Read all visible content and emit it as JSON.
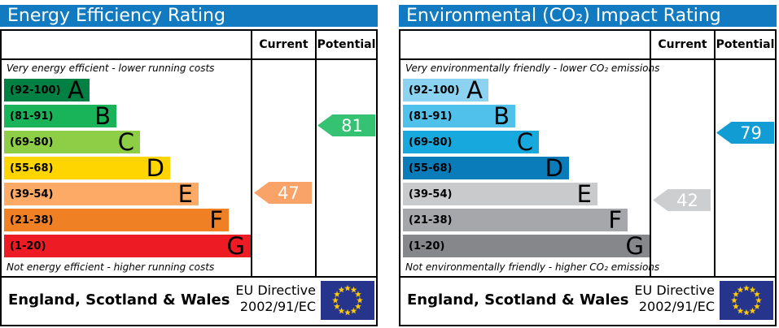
{
  "panels": [
    {
      "id": "energy-efficiency",
      "title": "Energy Efficiency Rating",
      "header_color": "#117ac1",
      "columns": {
        "current": "Current",
        "potential": "Potential"
      },
      "top_note": "Very energy efficient - lower running costs",
      "bottom_note": "Not energy efficient - higher running costs",
      "bands": [
        {
          "letter": "A",
          "range": "(92-100)",
          "min": 92,
          "max": 100,
          "color": "#008042",
          "width_pct": 34.7
        },
        {
          "letter": "B",
          "range": "(81-91)",
          "min": 81,
          "max": 91,
          "color": "#19b459",
          "width_pct": 45.5
        },
        {
          "letter": "C",
          "range": "(69-80)",
          "min": 69,
          "max": 80,
          "color": "#8dce46",
          "width_pct": 55.0
        },
        {
          "letter": "D",
          "range": "(55-68)",
          "min": 55,
          "max": 68,
          "color": "#ffd500",
          "width_pct": 67.3
        },
        {
          "letter": "E",
          "range": "(39-54)",
          "min": 39,
          "max": 54,
          "color": "#fcaa65",
          "width_pct": 78.9
        },
        {
          "letter": "F",
          "range": "(21-38)",
          "min": 21,
          "max": 38,
          "color": "#ef8023",
          "width_pct": 91.0
        },
        {
          "letter": "G",
          "range": "(1-20)",
          "min": 1,
          "max": 20,
          "color": "#ed1c24",
          "width_pct": 100
        }
      ],
      "current": {
        "value": 47,
        "color": "#f9a368"
      },
      "potential": {
        "value": 81,
        "color": "#35c273"
      },
      "footer": {
        "region": "England, Scotland & Wales",
        "directive_line1": "EU Directive",
        "directive_line2": "2002/91/EC"
      }
    },
    {
      "id": "co2-impact",
      "title": "Environmental (CO₂) Impact Rating",
      "header_color": "#117ac1",
      "columns": {
        "current": "Current",
        "potential": "Potential"
      },
      "top_note": "Very environmentally friendly - lower CO₂ emissions",
      "bottom_note": "Not environmentally friendly - higher CO₂ emissions",
      "bands": [
        {
          "letter": "A",
          "range": "(92-100)",
          "min": 92,
          "max": 100,
          "color": "#8bd3f1",
          "width_pct": 34.7
        },
        {
          "letter": "B",
          "range": "(81-91)",
          "min": 81,
          "max": 91,
          "color": "#50c1ea",
          "width_pct": 45.5
        },
        {
          "letter": "C",
          "range": "(69-80)",
          "min": 69,
          "max": 80,
          "color": "#17a8de",
          "width_pct": 55.0
        },
        {
          "letter": "D",
          "range": "(55-68)",
          "min": 55,
          "max": 68,
          "color": "#0b7cba",
          "width_pct": 67.3
        },
        {
          "letter": "E",
          "range": "(39-54)",
          "min": 39,
          "max": 54,
          "color": "#c9cacc",
          "width_pct": 78.9
        },
        {
          "letter": "F",
          "range": "(21-38)",
          "min": 21,
          "max": 38,
          "color": "#a5a7aa",
          "width_pct": 91.0
        },
        {
          "letter": "G",
          "range": "(1-20)",
          "min": 1,
          "max": 20,
          "color": "#85878a",
          "width_pct": 100
        }
      ],
      "current": {
        "value": 42,
        "color": "#cdced0"
      },
      "potential": {
        "value": 79,
        "color": "#119cd4"
      },
      "footer": {
        "region": "England, Scotland & Wales",
        "directive_line1": "EU Directive",
        "directive_line2": "2002/91/EC"
      }
    }
  ],
  "eu_flag": {
    "background": "#27348b",
    "star_color": "#ffcc00"
  },
  "chart_data": [
    {
      "type": "bar",
      "title": "Energy Efficiency Rating",
      "categories": [
        "A (92-100)",
        "B (81-91)",
        "C (69-80)",
        "D (55-68)",
        "E (39-54)",
        "F (21-38)",
        "G (1-20)"
      ],
      "series": [
        {
          "name": "Current",
          "values": [
            47
          ],
          "band": "E"
        },
        {
          "name": "Potential",
          "values": [
            81
          ],
          "band": "B"
        }
      ],
      "xlabel": "",
      "ylabel": "",
      "ylim": [
        1,
        100
      ],
      "annotations": [
        "Very energy efficient - lower running costs",
        "Not energy efficient - higher running costs",
        "England, Scotland & Wales",
        "EU Directive 2002/91/EC"
      ]
    },
    {
      "type": "bar",
      "title": "Environmental (CO₂) Impact Rating",
      "categories": [
        "A (92-100)",
        "B (81-91)",
        "C (69-80)",
        "D (55-68)",
        "E (39-54)",
        "F (21-38)",
        "G (1-20)"
      ],
      "series": [
        {
          "name": "Current",
          "values": [
            42
          ],
          "band": "E"
        },
        {
          "name": "Potential",
          "values": [
            79
          ],
          "band": "C"
        }
      ],
      "xlabel": "",
      "ylabel": "",
      "ylim": [
        1,
        100
      ],
      "annotations": [
        "Very environmentally friendly - lower CO₂ emissions",
        "Not environmentally friendly - higher CO₂ emissions",
        "England, Scotland & Wales",
        "EU Directive 2002/91/EC"
      ]
    }
  ]
}
